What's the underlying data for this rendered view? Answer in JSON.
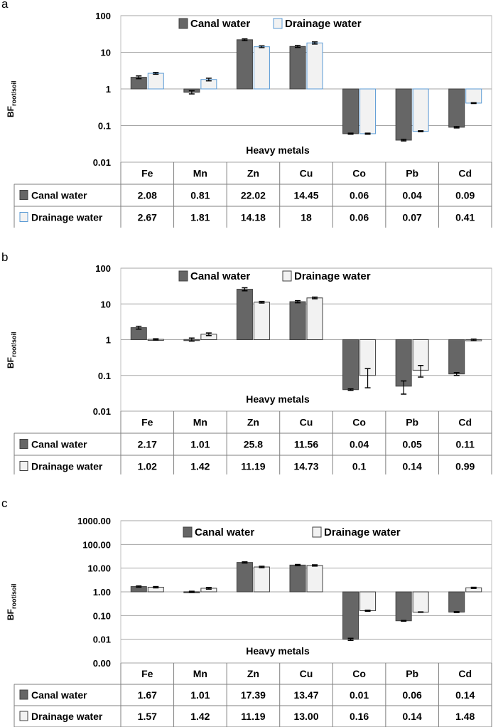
{
  "y_axis_label": "BF",
  "y_axis_label_sub": "root/soil",
  "chart_data": [
    {
      "panel": "a",
      "type": "bar",
      "log_scale": true,
      "xlabel": "Heavy metals",
      "ylabel": "BF root/soil",
      "ylim": [
        0.01,
        100
      ],
      "yticks": [
        "100",
        "10",
        "1",
        "0.1",
        "0.01"
      ],
      "categories": [
        "Fe",
        "Mn",
        "Zn",
        "Cu",
        "Co",
        "Pb",
        "Cd"
      ],
      "series": [
        {
          "name": "Canal water",
          "color": "#666666",
          "border": "#404040",
          "values": [
            2.08,
            0.81,
            22.02,
            14.45,
            0.06,
            0.04,
            0.09
          ],
          "labels": [
            "2.08",
            "0.81",
            "22.02",
            "14.45",
            "0.06",
            "0.04",
            "0.09"
          ],
          "errors": [
            0.18,
            0.08,
            1.2,
            0.9,
            0.002,
            0.002,
            0.004
          ]
        },
        {
          "name": "Drainage water",
          "color": "#f2f2f2",
          "border": "#5b9bd5",
          "values": [
            2.67,
            1.81,
            14.18,
            18,
            0.06,
            0.07,
            0.41
          ],
          "labels": [
            "2.67",
            "1.81",
            "14.18",
            "18",
            "0.06",
            "0.07",
            "0.41"
          ],
          "errors": [
            0.15,
            0.15,
            0.8,
            1.2,
            0.002,
            0.002,
            0.01
          ]
        }
      ]
    },
    {
      "panel": "b",
      "type": "bar",
      "log_scale": true,
      "xlabel": "Heavy metals",
      "ylabel": "BF root/soil",
      "ylim": [
        0.01,
        100
      ],
      "yticks": [
        "100",
        "10",
        "1",
        "0.1",
        "0.01"
      ],
      "categories": [
        "Fe",
        "Mn",
        "Zn",
        "Cu",
        "Co",
        "Pb",
        "Cd"
      ],
      "series": [
        {
          "name": "Canal water",
          "color": "#666666",
          "border": "#404040",
          "values": [
            2.17,
            1.01,
            25.8,
            11.56,
            0.04,
            0.05,
            0.11
          ],
          "labels": [
            "2.17",
            "1.01",
            "25.8",
            "11.56",
            "0.04",
            "0.05",
            "0.11"
          ],
          "errors": [
            0.2,
            0.1,
            2.5,
            0.8,
            0.002,
            0.02,
            0.01
          ]
        },
        {
          "name": "Drainage water",
          "color": "#f2f2f2",
          "border": "#404040",
          "values": [
            1.02,
            1.42,
            11.19,
            14.73,
            0.1,
            0.14,
            0.99
          ],
          "labels": [
            "1.02",
            "1.42",
            "11.19",
            "14.73",
            "0.1",
            "0.14",
            "0.99"
          ],
          "errors": [
            0.04,
            0.12,
            0.6,
            0.8,
            0.055,
            0.05,
            0.05
          ]
        }
      ]
    },
    {
      "panel": "c",
      "type": "bar",
      "log_scale": true,
      "xlabel": "Heavy metals",
      "ylabel": "BF root/soil",
      "ylim": [
        0.001,
        1000
      ],
      "yticks": [
        "1000.00",
        "100.00",
        "10.00",
        "1.00",
        "0.10",
        "0.01",
        "0.00"
      ],
      "categories": [
        "Fe",
        "Mn",
        "Zn",
        "Cu",
        "Co",
        "Pb",
        "Cd"
      ],
      "series": [
        {
          "name": "Canal water",
          "color": "#666666",
          "border": "#404040",
          "values": [
            1.67,
            1.01,
            17.39,
            13.47,
            0.01,
            0.06,
            0.14
          ],
          "labels": [
            "1.67",
            "1.01",
            "17.39",
            "13.47",
            "0.01",
            "0.06",
            "0.14"
          ],
          "errors": [
            0.1,
            0.05,
            1.0,
            0.8,
            0.001,
            0.002,
            0.006
          ]
        },
        {
          "name": "Drainage water",
          "color": "#f2f2f2",
          "border": "#404040",
          "values": [
            1.57,
            1.42,
            11.19,
            13.0,
            0.16,
            0.14,
            1.48
          ],
          "labels": [
            "1.57",
            "1.42",
            "11.19",
            "13.00",
            "0.16",
            "0.14",
            "1.48"
          ],
          "errors": [
            0.1,
            0.12,
            0.8,
            0.8,
            0.008,
            0.003,
            0.08
          ]
        }
      ]
    }
  ]
}
